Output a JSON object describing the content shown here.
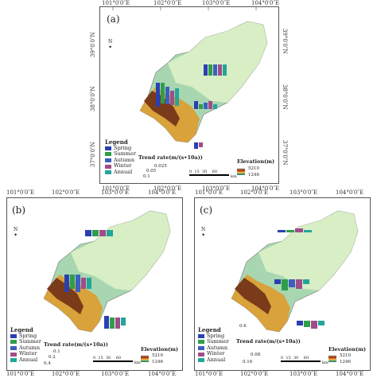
{
  "colors": {
    "spring": "#2b3fb4",
    "summer": "#2f9e4a",
    "autumn": "#3c5fbf",
    "winter": "#a04c8a",
    "annual": "#23a59a"
  },
  "legend": {
    "title": "Legend",
    "items": [
      "Spring",
      "Summer",
      "Autumn",
      "Winter",
      "Annual"
    ]
  },
  "trend_title": "Trend rate(m/(s•10a))",
  "elevation_title": "Elevation(m)",
  "elevation_max": "5210",
  "elevation_min": "1246",
  "scale_labels": [
    "0",
    "15",
    "30",
    "60"
  ],
  "scale_unit": "km",
  "north_label": "N",
  "top_lon_labels": [
    "101°0′0″E",
    "102°0′0″E",
    "103°0′0″E",
    "104°0′0″E"
  ],
  "lat_labels": [
    "39°0′0″N",
    "38°0′0″N",
    "37°0′0″N"
  ],
  "panels": {
    "a": {
      "label": "(a)",
      "trend_ticks": [
        "0.025",
        "0.05",
        "0.1"
      ]
    },
    "b": {
      "label": "(b)",
      "trend_ticks": [
        "0.1",
        "0.2",
        "0.4"
      ]
    },
    "c": {
      "label": "(c)",
      "trend_ticks": [
        "0.6",
        "0.08",
        "0.16"
      ]
    }
  }
}
